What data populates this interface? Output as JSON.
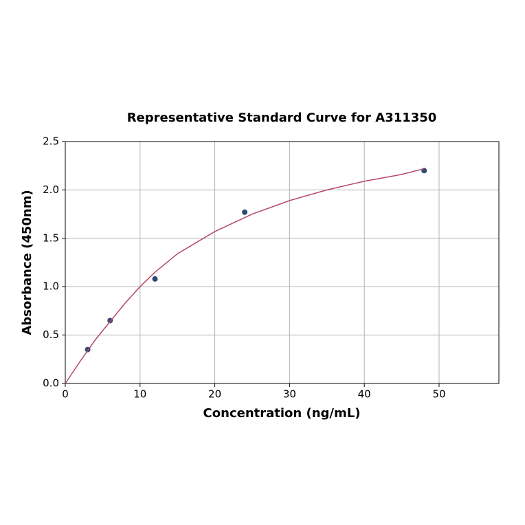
{
  "chart_data": {
    "type": "scatter",
    "title": "Representative Standard Curve for A311350",
    "x_label": "Concentration (ng/mL)",
    "y_label": "Absorbance (450nm)",
    "xlim": [
      0,
      58
    ],
    "ylim": [
      0,
      2.5
    ],
    "xticks": [
      0,
      10,
      20,
      30,
      40,
      50
    ],
    "yticks": [
      {
        "value": 0,
        "label": "0.0"
      },
      {
        "value": 0.5,
        "label": "0.5"
      },
      {
        "value": 1,
        "label": "1.0"
      },
      {
        "value": 1.5,
        "label": "1.5"
      },
      {
        "value": 2,
        "label": "2.0"
      },
      {
        "value": 2.5,
        "label": "2.5"
      }
    ],
    "grid": true,
    "series": [
      {
        "color": "#2e4a72",
        "x": [
          3,
          6,
          12,
          24,
          48
        ],
        "values": [
          0.35,
          0.65,
          1.08,
          1.77,
          2.2
        ]
      },
      {
        "color": "#b5476a",
        "line": true,
        "x": [
          0,
          2,
          4,
          6,
          8,
          10,
          12,
          15,
          20,
          25,
          30,
          35,
          40,
          45,
          48
        ],
        "values": [
          0,
          0.23,
          0.45,
          0.64,
          0.83,
          1.0,
          1.15,
          1.34,
          1.57,
          1.75,
          1.89,
          2.0,
          2.09,
          2.16,
          2.22
        ]
      }
    ]
  }
}
